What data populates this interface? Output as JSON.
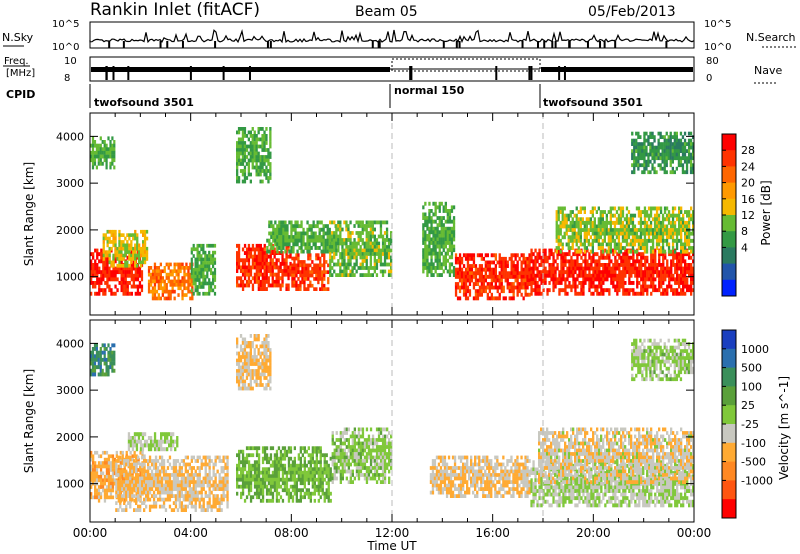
{
  "header": {
    "station": "Rankin Inlet (fitACF)",
    "beam": "Beam 05",
    "date": "05/Feb/2013"
  },
  "status_panels": {
    "nsky": {
      "label": "N.Sky",
      "ticks": [
        "10^5",
        "10^0"
      ],
      "right_label": "N.Search",
      "right_ticks": [
        "10^5",
        "10^0"
      ]
    },
    "freq": {
      "label_top": "Freq.",
      "label_bottom": "[MHz]",
      "ticks": [
        "10",
        "8"
      ],
      "right_label": "Nave",
      "right_ticks": [
        "80",
        "0"
      ]
    },
    "cpid": {
      "label": "CPID",
      "segments": [
        "twofsound 3501",
        "normal 150",
        "twofsound 3501"
      ]
    }
  },
  "colorbars": {
    "power": {
      "title": "Power [dB]",
      "ticks": [
        "28",
        "24",
        "20",
        "16",
        "12",
        "8",
        "4"
      ],
      "colors": [
        "#ff0000",
        "#ff3300",
        "#ff6600",
        "#ff9900",
        "#f5b800",
        "#66bb33",
        "#339944",
        "#2a7a60",
        "#2255aa",
        "#0022ff"
      ]
    },
    "velocity": {
      "title": "Velocity [m s^-1]",
      "ticks": [
        "1000",
        "500",
        "100",
        "25",
        "-25",
        "-100",
        "-500",
        "-1000"
      ],
      "colors": [
        "#1a3fbf",
        "#2a6fae",
        "#3a8f5a",
        "#5aa03a",
        "#80c83a",
        "#c8c8c0",
        "#ffaa33",
        "#ff8822",
        "#ff5511",
        "#ff0000"
      ]
    }
  },
  "axes": {
    "ylabel": "Slant Range [km]",
    "yticks": [
      "1000",
      "2000",
      "3000",
      "4000"
    ],
    "xticks": [
      "00:00",
      "04:00",
      "08:00",
      "12:00",
      "16:00",
      "20:00",
      "00:00"
    ],
    "xlabel": "Time UT"
  },
  "chart_data": [
    {
      "type": "heatmap",
      "title": "Power [dB]",
      "x": "Time UT",
      "xlim": [
        0,
        24
      ],
      "ylabel": "Slant Range [km]",
      "ylim": [
        180,
        4500
      ],
      "clim": [
        0,
        30
      ],
      "regions": [
        {
          "t0": 0.0,
          "t1": 2.1,
          "r0": 600,
          "r1": 1600,
          "value": 27
        },
        {
          "t0": 0.5,
          "t1": 2.3,
          "r0": 1200,
          "r1": 2000,
          "value": 16
        },
        {
          "t0": 2.3,
          "t1": 4.1,
          "r0": 500,
          "r1": 1300,
          "value": 22
        },
        {
          "t0": 4.0,
          "t1": 5.0,
          "r0": 600,
          "r1": 1700,
          "value": 12
        },
        {
          "t0": 5.8,
          "t1": 8.0,
          "r0": 700,
          "r1": 1700,
          "value": 26
        },
        {
          "t0": 8.0,
          "t1": 9.5,
          "r0": 700,
          "r1": 1500,
          "value": 25
        },
        {
          "t0": 7.0,
          "t1": 9.8,
          "r0": 1500,
          "r1": 2200,
          "value": 12
        },
        {
          "t0": 9.5,
          "t1": 12.0,
          "r0": 1000,
          "r1": 2200,
          "value": 13
        },
        {
          "t0": 13.2,
          "t1": 14.5,
          "r0": 1000,
          "r1": 2600,
          "value": 12
        },
        {
          "t0": 14.5,
          "t1": 17.5,
          "r0": 500,
          "r1": 1500,
          "value": 26
        },
        {
          "t0": 17.5,
          "t1": 24.0,
          "r0": 600,
          "r1": 1600,
          "value": 27
        },
        {
          "t0": 18.5,
          "t1": 24.0,
          "r0": 1500,
          "r1": 2500,
          "value": 14
        },
        {
          "t0": 0.0,
          "t1": 1.0,
          "r0": 3300,
          "r1": 4000,
          "value": 12
        },
        {
          "t0": 5.8,
          "t1": 7.2,
          "r0": 3000,
          "r1": 4200,
          "value": 12
        },
        {
          "t0": 21.5,
          "t1": 24.0,
          "r0": 3200,
          "r1": 4100,
          "value": 10
        }
      ]
    },
    {
      "type": "heatmap",
      "title": "Velocity [m s^-1]",
      "x": "Time UT",
      "xlim": [
        0,
        24
      ],
      "ylabel": "Slant Range [km]",
      "ylim": [
        180,
        4500
      ],
      "clim": [
        -1000,
        1000
      ],
      "regions": [
        {
          "t0": 0.0,
          "t1": 2.2,
          "r0": 600,
          "r1": 1700,
          "value": -300
        },
        {
          "t0": 1.0,
          "t1": 5.5,
          "r0": 400,
          "r1": 1600,
          "value": -200
        },
        {
          "t0": 1.5,
          "t1": 3.5,
          "r0": 1700,
          "r1": 2100,
          "value": 0
        },
        {
          "t0": 5.8,
          "t1": 9.6,
          "r0": 600,
          "r1": 1800,
          "value": 200
        },
        {
          "t0": 9.6,
          "t1": 12.0,
          "r0": 1000,
          "r1": 2200,
          "value": 80
        },
        {
          "t0": 13.5,
          "t1": 17.5,
          "r0": 700,
          "r1": 1600,
          "value": -200
        },
        {
          "t0": 17.5,
          "t1": 24.0,
          "r0": 500,
          "r1": 1500,
          "value": 0
        },
        {
          "t0": 17.8,
          "t1": 24.0,
          "r0": 1000,
          "r1": 2200,
          "value": -150
        },
        {
          "t0": 0.0,
          "t1": 1.0,
          "r0": 3300,
          "r1": 4000,
          "value": 500
        },
        {
          "t0": 5.8,
          "t1": 7.2,
          "r0": 3000,
          "r1": 4200,
          "value": -200
        },
        {
          "t0": 21.5,
          "t1": 24.0,
          "r0": 3200,
          "r1": 4100,
          "value": 50
        }
      ]
    }
  ]
}
